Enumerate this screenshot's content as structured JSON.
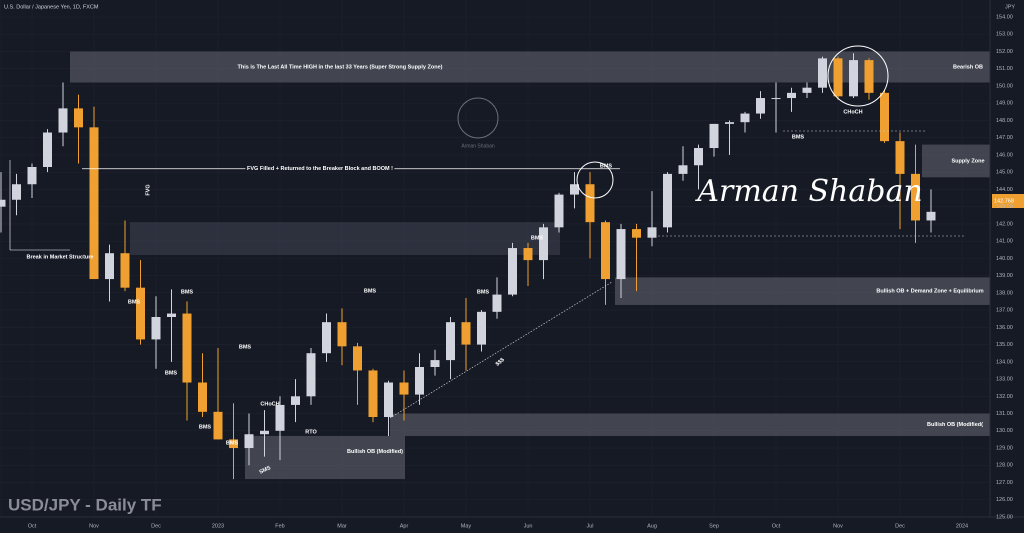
{
  "header": {
    "symbol": "U.S. Dollar / Japanese Yen, 1D, FXCM",
    "currency": "JPY",
    "watermark": "USD/JPY - Daily TF",
    "signature": "Arman Shaban",
    "logo_text": "Arman Shaban",
    "last_price": "142.768"
  },
  "chart_data": {
    "type": "candlestick",
    "categories": [
      "",
      null,
      "Oct",
      null,
      null,
      null,
      "Nov",
      null,
      null,
      null,
      "Dec",
      null,
      null,
      null,
      "2023",
      null,
      null,
      null,
      "Feb",
      null,
      null,
      null,
      "Mar",
      null,
      null,
      null,
      "Apr",
      null,
      null,
      null,
      "May",
      null,
      null,
      null,
      "Jun",
      null,
      null,
      null,
      "Jul",
      null,
      null,
      null,
      "Aug",
      null,
      null,
      null,
      "Sep",
      null,
      null,
      null,
      "Oct",
      null,
      null,
      null,
      "Nov",
      null,
      null,
      null,
      "Dec",
      null,
      null,
      null,
      "2024"
    ],
    "open": [
      143.0,
      143.4,
      144.3,
      145.3,
      147.3,
      148.7,
      147.6,
      138.8,
      140.3,
      138.3,
      135.3,
      136.6,
      136.8,
      132.8,
      131.1,
      129.5,
      129.0,
      129.8,
      130.0,
      131.5,
      132.0,
      134.5,
      136.3,
      134.9,
      133.5,
      130.8,
      132.8,
      132.1,
      133.7,
      134.1,
      136.3,
      135.0,
      136.9,
      137.9,
      140.6,
      139.9,
      141.8,
      143.7,
      144.3,
      142.1,
      138.8,
      141.7,
      141.2,
      141.8,
      144.9,
      145.4,
      146.4,
      147.8,
      147.9,
      148.4,
      149.3,
      149.3,
      149.6,
      149.9,
      151.6,
      149.4,
      151.5,
      149.6,
      146.8,
      144.9,
      142.2,
      null,
      null
    ],
    "high": [
      145.0,
      144.9,
      145.5,
      147.5,
      150.2,
      149.5,
      148.8,
      140.8,
      142.2,
      139.9,
      137.8,
      138.2,
      137.5,
      134.5,
      134.8,
      131.6,
      131.0,
      131.2,
      132.0,
      133.0,
      134.8,
      136.8,
      137.1,
      135.1,
      133.6,
      132.9,
      133.5,
      134.5,
      134.7,
      136.6,
      137.7,
      137.0,
      138.9,
      140.9,
      140.9,
      142.0,
      143.8,
      145.0,
      145.0,
      142.2,
      142.0,
      142.0,
      143.9,
      145.0,
      146.5,
      146.6,
      147.8,
      148.0,
      148.5,
      149.7,
      150.2,
      149.9,
      150.2,
      151.7,
      151.7,
      151.9,
      151.6,
      149.8,
      147.3,
      146.6,
      144.0,
      null,
      null
    ],
    "low": [
      141.5,
      142.5,
      143.5,
      145.0,
      146.5,
      145.5,
      139.0,
      137.5,
      138.1,
      135.0,
      133.6,
      134.0,
      130.6,
      130.8,
      129.5,
      127.2,
      128.0,
      128.5,
      128.3,
      130.5,
      131.5,
      134.0,
      133.8,
      131.5,
      130.5,
      129.7,
      130.6,
      131.5,
      133.2,
      133.0,
      133.5,
      134.6,
      136.5,
      137.8,
      138.4,
      138.8,
      141.5,
      142.9,
      140.0,
      137.3,
      137.7,
      138.1,
      140.7,
      141.5,
      144.5,
      144.0,
      145.9,
      146.0,
      147.3,
      148.1,
      147.3,
      148.5,
      149.3,
      149.6,
      149.2,
      149.3,
      149.2,
      146.7,
      141.7,
      140.9,
      141.5,
      null,
      null
    ],
    "close": [
      143.4,
      144.3,
      145.3,
      147.3,
      148.7,
      147.6,
      138.8,
      140.3,
      138.3,
      135.3,
      136.6,
      136.8,
      132.8,
      131.1,
      129.5,
      129.0,
      129.8,
      130.0,
      131.5,
      132.0,
      134.5,
      136.3,
      134.9,
      133.5,
      130.8,
      132.8,
      132.1,
      133.7,
      134.1,
      136.3,
      135.0,
      136.9,
      137.9,
      140.6,
      139.9,
      141.8,
      143.7,
      144.3,
      142.1,
      138.8,
      141.7,
      141.2,
      141.8,
      144.9,
      145.4,
      146.4,
      147.8,
      147.9,
      148.4,
      149.3,
      149.3,
      149.6,
      149.9,
      151.6,
      149.4,
      151.5,
      149.6,
      146.8,
      144.9,
      142.2,
      142.7,
      null,
      null
    ],
    "up_color": "#d1d4dc",
    "down_color": "#f0a030",
    "ylim": [
      125,
      154.5
    ],
    "yticks": [
      {
        "value": 125,
        "label": "125.00"
      },
      {
        "value": 126,
        "label": "126.00"
      },
      {
        "value": 127,
        "label": "127.00"
      },
      {
        "value": 128,
        "label": "128.00"
      },
      {
        "value": 129,
        "label": "129.00"
      },
      {
        "value": 130,
        "label": "130.00"
      },
      {
        "value": 131,
        "label": "131.00"
      },
      {
        "value": 132,
        "label": "132.00"
      },
      {
        "value": 133,
        "label": "133.00"
      },
      {
        "value": 134,
        "label": "134.00"
      },
      {
        "value": 135,
        "label": "135.00"
      },
      {
        "value": 136,
        "label": "136.00"
      },
      {
        "value": 137,
        "label": "137.00"
      },
      {
        "value": 138,
        "label": "138.00"
      },
      {
        "value": 139,
        "label": "139.00"
      },
      {
        "value": 140,
        "label": "140.00"
      },
      {
        "value": 141,
        "label": "141.00"
      },
      {
        "value": 142,
        "label": "142.00"
      },
      {
        "value": 143,
        "label": "143.00"
      },
      {
        "value": 144,
        "label": "144.00"
      },
      {
        "value": 145,
        "label": "145.00"
      },
      {
        "value": 146,
        "label": "146.00"
      },
      {
        "value": 147,
        "label": "147.00"
      },
      {
        "value": 148,
        "label": "148.00"
      },
      {
        "value": 149,
        "label": "149.00"
      },
      {
        "value": 150,
        "label": "150.00"
      },
      {
        "value": 151,
        "label": "151.00"
      },
      {
        "value": 152,
        "label": "152.00"
      },
      {
        "value": 153,
        "label": "153.00"
      },
      {
        "value": 154,
        "label": "154.00"
      }
    ],
    "zones": [
      {
        "label": "This is The Last All Time HIGH in the last 33 Years (Super Strong Supply Zone)",
        "side_label": "Bearish OB",
        "range": [
          150.2,
          152.0
        ]
      },
      {
        "range": [
          140.2,
          142.1
        ]
      },
      {
        "label": "Bullish OB + Demand Zone + Equilibrium",
        "range": [
          137.3,
          138.9
        ]
      },
      {
        "label": "Bullish OB (Modified(",
        "range": [
          129.7,
          131.0
        ]
      },
      {
        "label": "Bullish OB (Modified)",
        "range": [
          127.2,
          129.7
        ]
      },
      {
        "label": "Supply Zone",
        "range": [
          144.7,
          146.6
        ]
      }
    ],
    "fvg_line": {
      "label": "FVG Filled + Returned to the Breaker Block and BOOM !",
      "value": 145.2
    },
    "annotations": [
      "Break in Market Structure",
      "FVG",
      "BMS",
      "BMS",
      "BMS",
      "BMS",
      "BMS",
      "BMS",
      "BMS",
      "BMS",
      "BMS",
      "BMS",
      "BMS",
      "CHoCH",
      "RTO",
      "SMS",
      "$$$",
      "CHoCH"
    ]
  }
}
